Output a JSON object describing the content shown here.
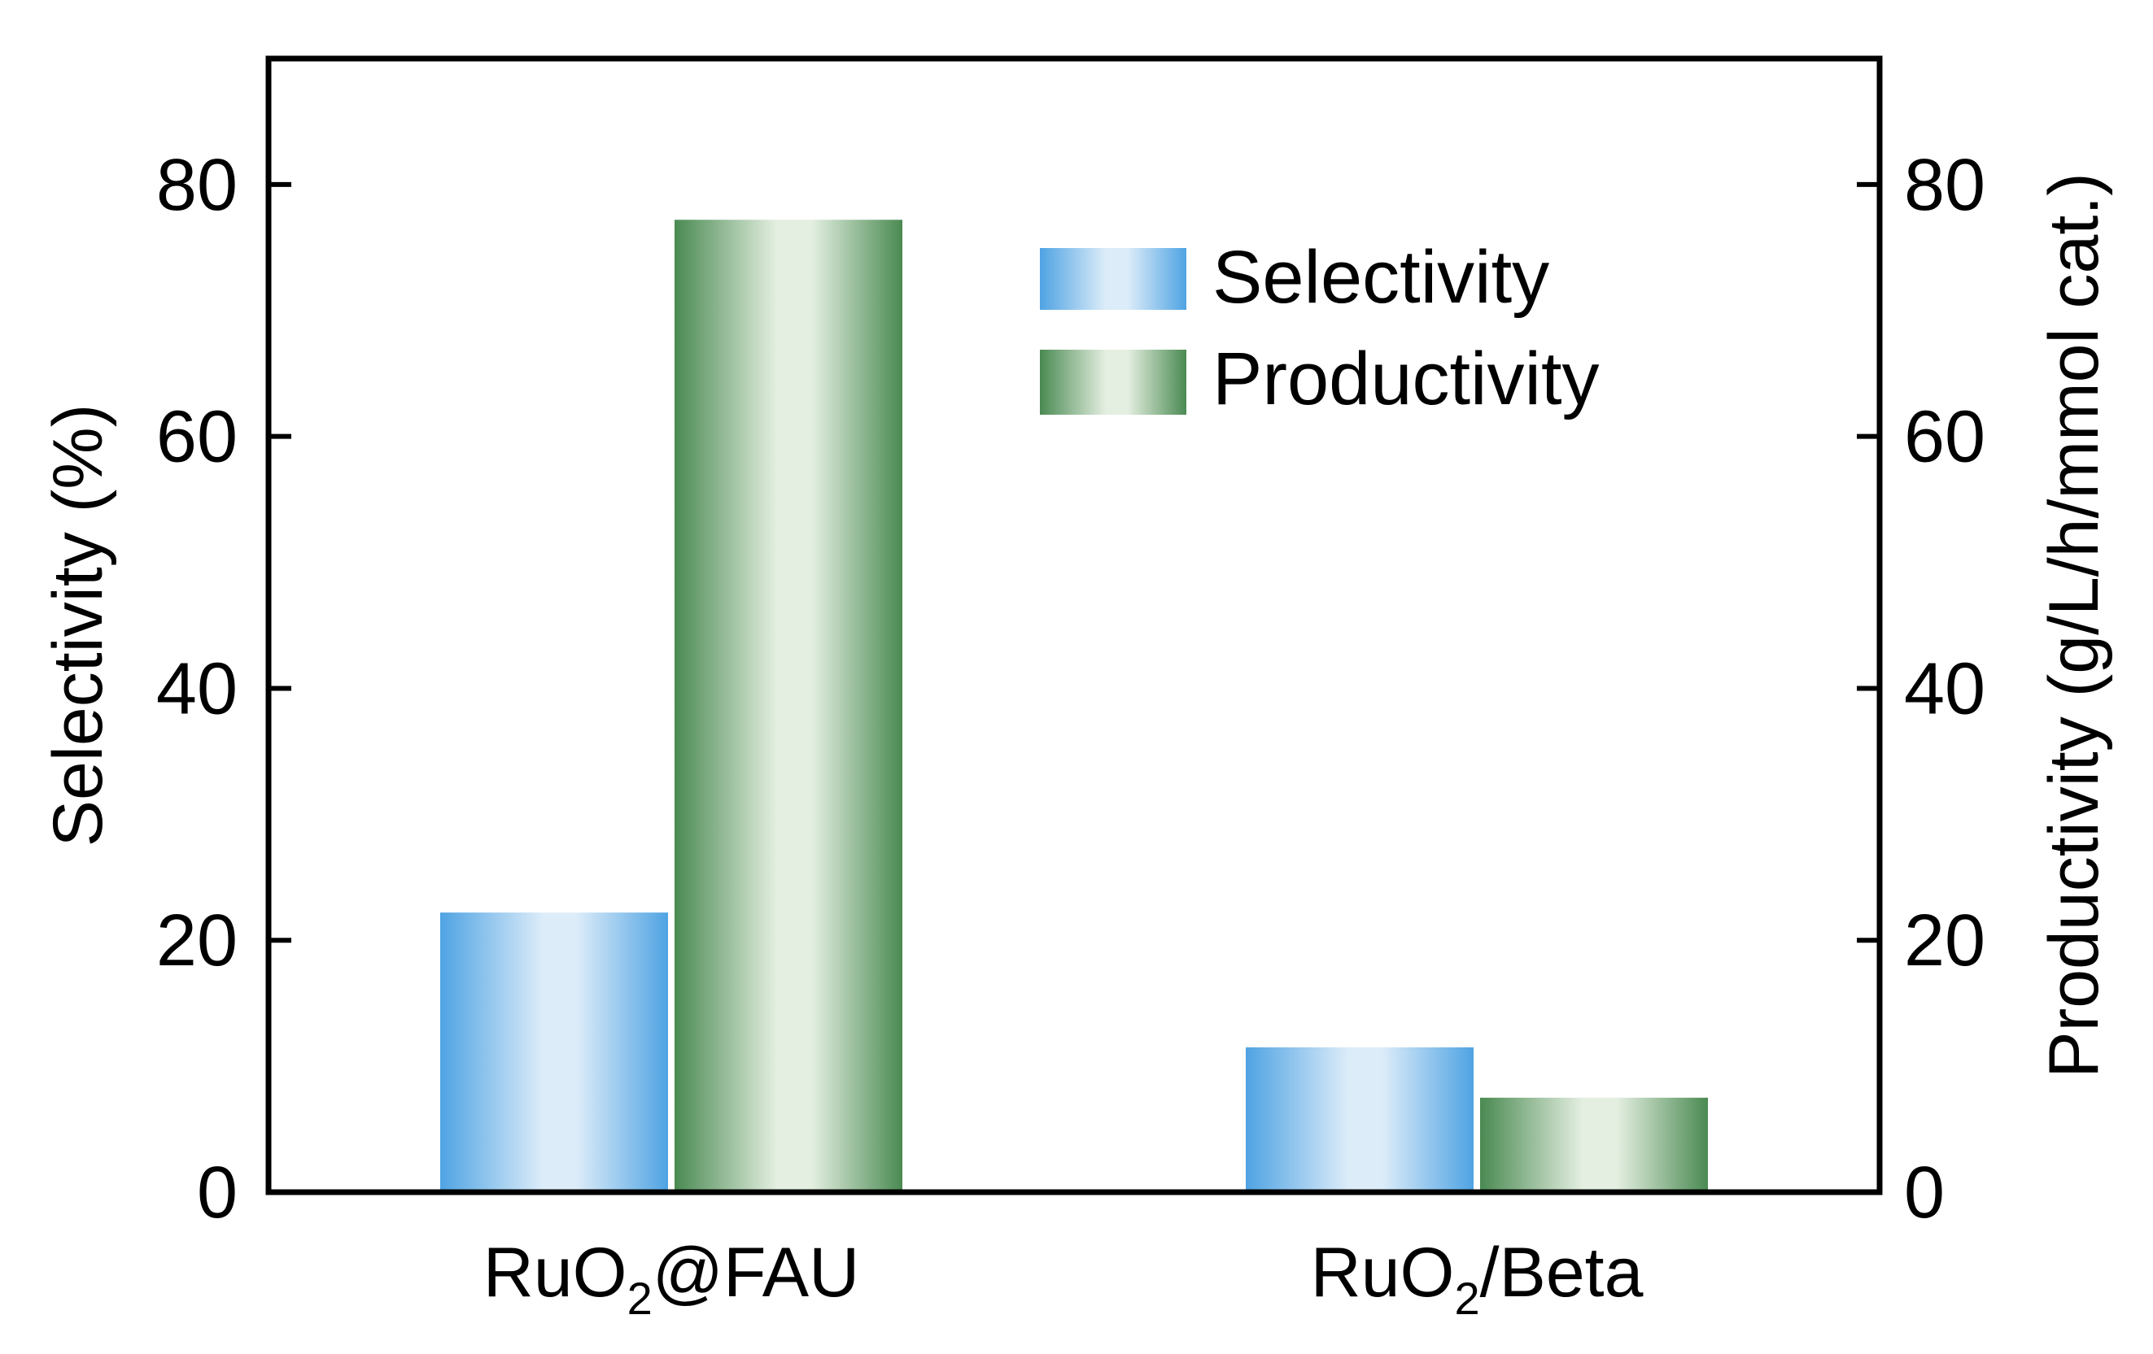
{
  "chart_data": {
    "type": "bar",
    "categories": [
      {
        "base": "RuO",
        "sub": "2",
        "rest": "@FAU"
      },
      {
        "base": "RuO",
        "sub": "2",
        "rest": "/Beta"
      }
    ],
    "series": [
      {
        "name": "Selectivity",
        "axis": "left",
        "values": [
          22.2,
          11.5
        ],
        "colors": [
          "#4fa3e3",
          "#dcecf9"
        ]
      },
      {
        "name": "Productivity",
        "axis": "right",
        "values": [
          77.2,
          7.5
        ],
        "colors": [
          "#4a8a52",
          "#e4efe1"
        ]
      }
    ],
    "left_axis": {
      "label": "Selectivity (%)",
      "ylim": [
        0,
        90
      ],
      "ticks": [
        0,
        20,
        40,
        60,
        80
      ]
    },
    "right_axis": {
      "label": "Productivity (g/L/h/mmol cat.)",
      "ylim": [
        0,
        90
      ],
      "ticks": [
        0,
        20,
        40,
        60,
        80
      ]
    },
    "legend": {
      "placement": "top-right"
    },
    "grid": false
  }
}
